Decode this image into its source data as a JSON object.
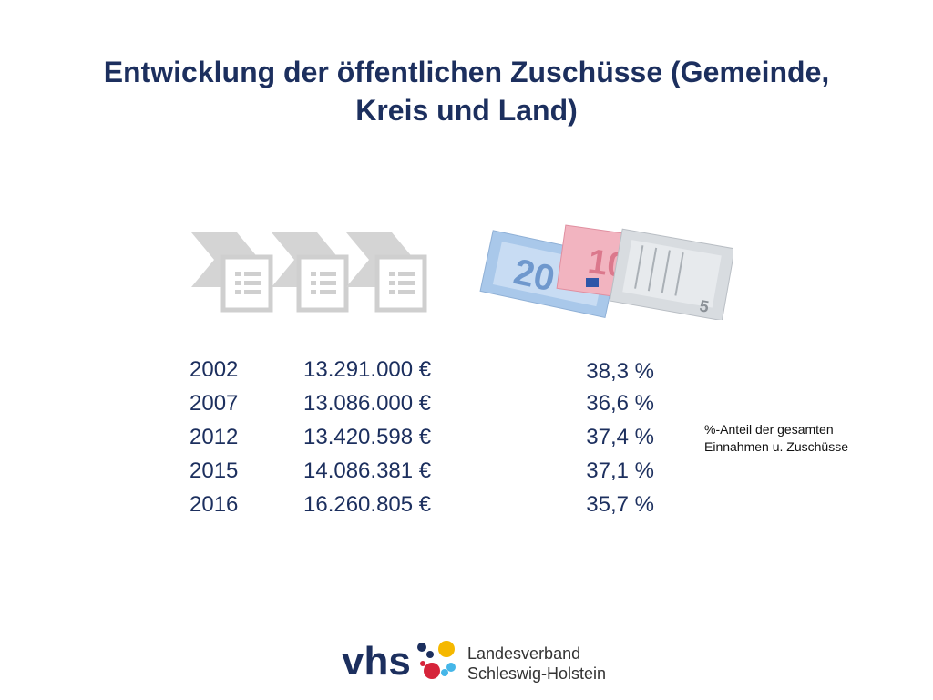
{
  "title": {
    "line1": "Entwicklung der öffentlichen Zuschüsse (Gemeinde,",
    "line2": "Kreis und Land)"
  },
  "rows": [
    {
      "year": "2002",
      "amount": "13.291.000 €",
      "percent": "38,3 %"
    },
    {
      "year": "2007",
      "amount": "13.086.000 €",
      "percent": "36,6 %"
    },
    {
      "year": "2012",
      "amount": "13.420.598 €",
      "percent": "37,4 %"
    },
    {
      "year": "2015",
      "amount": "14.086.381 €",
      "percent": "37,1 %"
    },
    {
      "year": "2016",
      "amount": "16.260.805 €",
      "percent": "35,7 %"
    }
  ],
  "note": {
    "line1": "%-Anteil der gesamten",
    "line2": "Einnahmen u. Zuschüsse"
  },
  "logo": {
    "brand": "vhs",
    "line1": "Landesverband",
    "line2": "Schleswig-Holstein"
  },
  "colors": {
    "title": "#1c2f5e",
    "text": "#1c2f5e",
    "graphic_gray": "#d0d0d0",
    "logo_blue": "#1c2f5e",
    "logo_red": "#d6243a",
    "logo_yellow": "#f5b800",
    "logo_light_blue": "#45b6e8"
  },
  "icons": [
    "process-chevron-icon",
    "document-list-icon",
    "euro-banknotes-image",
    "vhs-logo"
  ]
}
